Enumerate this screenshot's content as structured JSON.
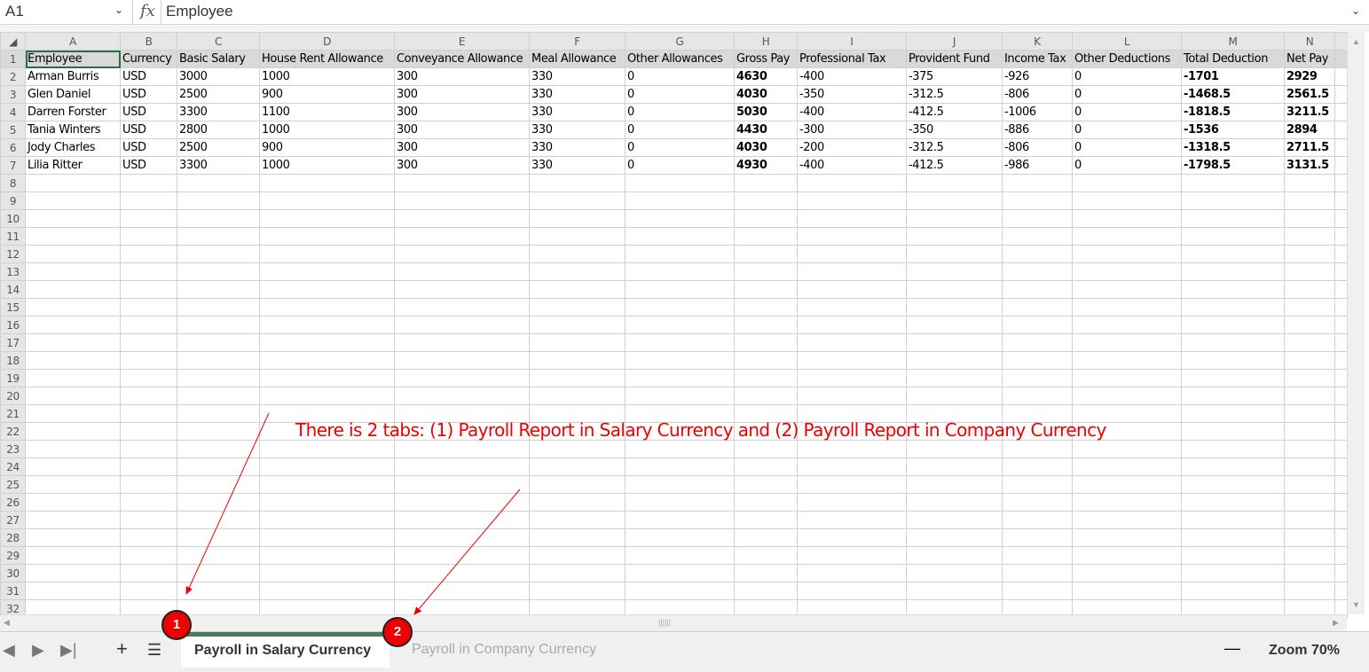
{
  "formula_bar": {
    "cell_ref": "A1",
    "fx_label": "fx",
    "value": "Employee"
  },
  "columns": [
    "A",
    "B",
    "C",
    "D",
    "E",
    "F",
    "G",
    "H",
    "I",
    "J",
    "K",
    "L",
    "M",
    "N"
  ],
  "headers": [
    "Employee",
    "Currency",
    "Basic Salary",
    "House Rent Allowance",
    "Conveyance Allowance",
    "Meal Allowance",
    "Other Allowances",
    "Gross Pay",
    "Professional Tax",
    "Provident Fund",
    "Income Tax",
    "Other Deductions",
    "Total Deduction",
    "Net Pay"
  ],
  "rows": [
    [
      "Arman Burris",
      "USD",
      "3000",
      "1000",
      "300",
      "330",
      "0",
      "4630",
      "-400",
      "-375",
      "-926",
      "0",
      "-1701",
      "2929"
    ],
    [
      "Glen Daniel",
      "USD",
      "2500",
      "900",
      "300",
      "330",
      "0",
      "4030",
      "-350",
      "-312.5",
      "-806",
      "0",
      "-1468.5",
      "2561.5"
    ],
    [
      "Darren Forster",
      "USD",
      "3300",
      "1100",
      "300",
      "330",
      "0",
      "5030",
      "-400",
      "-412.5",
      "-1006",
      "0",
      "-1818.5",
      "3211.5"
    ],
    [
      "Tania Winters",
      "USD",
      "2800",
      "1000",
      "300",
      "330",
      "0",
      "4430",
      "-300",
      "-350",
      "-886",
      "0",
      "-1536",
      "2894"
    ],
    [
      "Jody Charles",
      "USD",
      "2500",
      "900",
      "300",
      "330",
      "0",
      "4030",
      "-200",
      "-312.5",
      "-806",
      "0",
      "-1318.5",
      "2711.5"
    ],
    [
      "Lilia Ritter",
      "USD",
      "3300",
      "1000",
      "300",
      "330",
      "0",
      "4930",
      "-400",
      "-412.5",
      "-986",
      "0",
      "-1798.5",
      "3131.5"
    ]
  ],
  "row_count": 32,
  "sheet_tabs": [
    {
      "label": "Payroll in Salary Currency",
      "active": true
    },
    {
      "label": "Payroll in Company Currency",
      "active": false
    }
  ],
  "zoom_label": "Zoom 70%",
  "annotation": {
    "text": "There is 2 tabs: (1) Payroll Report in Salary Currency and (2) Payroll Report in Company Currency",
    "badge1": "1",
    "badge2": "2",
    "color": "#ee0000"
  },
  "accent": "#217346"
}
